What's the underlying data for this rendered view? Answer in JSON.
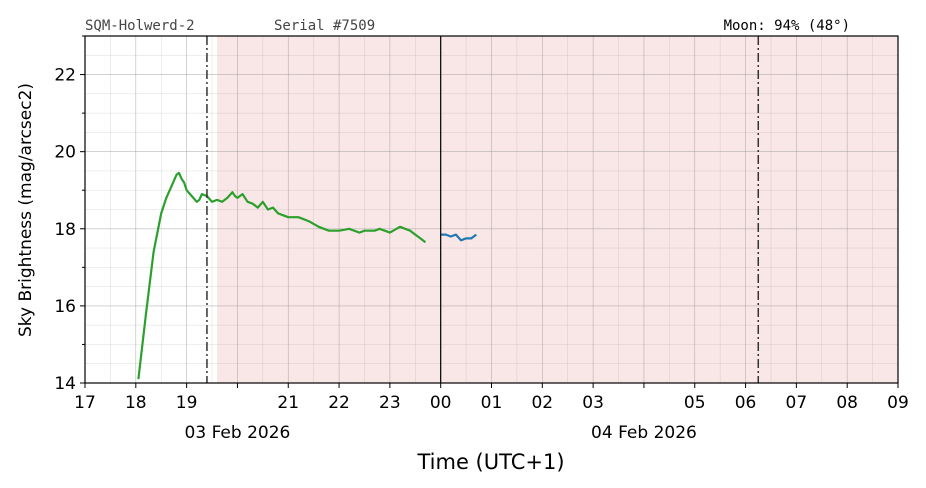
{
  "header": {
    "station": "SQM-Holwerd-2",
    "serial": "Serial #7509",
    "moon": "Moon: 94% (48°)"
  },
  "colors": {
    "dark_shade": "#f9e6e6",
    "evening_series": "#2ca02c",
    "morning_series": "#1f77b4",
    "grid": "#999999",
    "marker": "#333333"
  },
  "chart_data": {
    "type": "line",
    "xlabel": "Time (UTC+1)",
    "ylabel": "Sky Brightness (mag/arcsec2)",
    "x_unit": "hours since 03 Feb 2026 00:00 (UTC+1)",
    "xlim": [
      17,
      33
    ],
    "ylim": [
      14,
      23
    ],
    "y_ticks": [
      14,
      16,
      18,
      20,
      22
    ],
    "x_ticks": [
      {
        "x": 17,
        "label": "17"
      },
      {
        "x": 18,
        "label": "18"
      },
      {
        "x": 19,
        "label": "19"
      },
      {
        "x": 20,
        "label": ""
      },
      {
        "x": 21,
        "label": "21"
      },
      {
        "x": 22,
        "label": "22"
      },
      {
        "x": 23,
        "label": "23"
      },
      {
        "x": 24,
        "label": "00"
      },
      {
        "x": 25,
        "label": "01"
      },
      {
        "x": 26,
        "label": "02"
      },
      {
        "x": 27,
        "label": "03"
      },
      {
        "x": 28,
        "label": ""
      },
      {
        "x": 29,
        "label": "05"
      },
      {
        "x": 30,
        "label": "06"
      },
      {
        "x": 31,
        "label": "07"
      },
      {
        "x": 32,
        "label": "08"
      },
      {
        "x": 33,
        "label": "09"
      }
    ],
    "date_labels": [
      {
        "x": 20,
        "label": "03 Feb 2026"
      },
      {
        "x": 28,
        "label": "04 Feb 2026"
      }
    ],
    "grid": true,
    "dark_period": [
      19.6,
      33
    ],
    "midnight_line": 24,
    "twilight_lines": [
      19.4,
      30.25
    ],
    "series": [
      {
        "x": [
          18.05,
          18.2,
          18.35,
          18.5,
          18.6,
          18.7,
          18.8,
          18.85,
          18.9,
          18.95,
          19.0,
          19.1,
          19.2,
          19.25,
          19.3,
          19.4,
          19.5,
          19.6,
          19.7,
          19.8,
          19.9,
          19.95,
          20.0,
          20.1,
          20.2,
          20.3,
          20.4,
          20.5,
          20.6,
          20.7,
          20.8,
          20.9,
          21.0,
          21.1,
          21.2,
          21.4,
          21.6,
          21.8,
          22.0,
          22.2,
          22.4,
          22.5,
          22.6,
          22.7,
          22.8,
          22.9,
          23.0,
          23.2,
          23.4,
          23.5,
          23.6,
          23.7
        ],
        "values": [
          14.1,
          15.8,
          17.4,
          18.4,
          18.8,
          19.1,
          19.4,
          19.45,
          19.3,
          19.2,
          19.0,
          18.85,
          18.7,
          18.75,
          18.9,
          18.85,
          18.7,
          18.75,
          18.7,
          18.8,
          18.95,
          18.85,
          18.8,
          18.9,
          18.7,
          18.65,
          18.55,
          18.7,
          18.5,
          18.55,
          18.4,
          18.35,
          18.3,
          18.3,
          18.3,
          18.2,
          18.05,
          17.95,
          17.95,
          18.0,
          17.9,
          17.95,
          17.95,
          17.95,
          18.0,
          17.95,
          17.9,
          18.05,
          17.95,
          17.85,
          17.75,
          17.65
        ]
      },
      {
        "x": [
          24.0,
          24.1,
          24.2,
          24.3,
          24.4,
          24.5,
          24.6,
          24.7
        ],
        "values": [
          17.85,
          17.85,
          17.8,
          17.85,
          17.7,
          17.75,
          17.75,
          17.85
        ]
      }
    ]
  }
}
